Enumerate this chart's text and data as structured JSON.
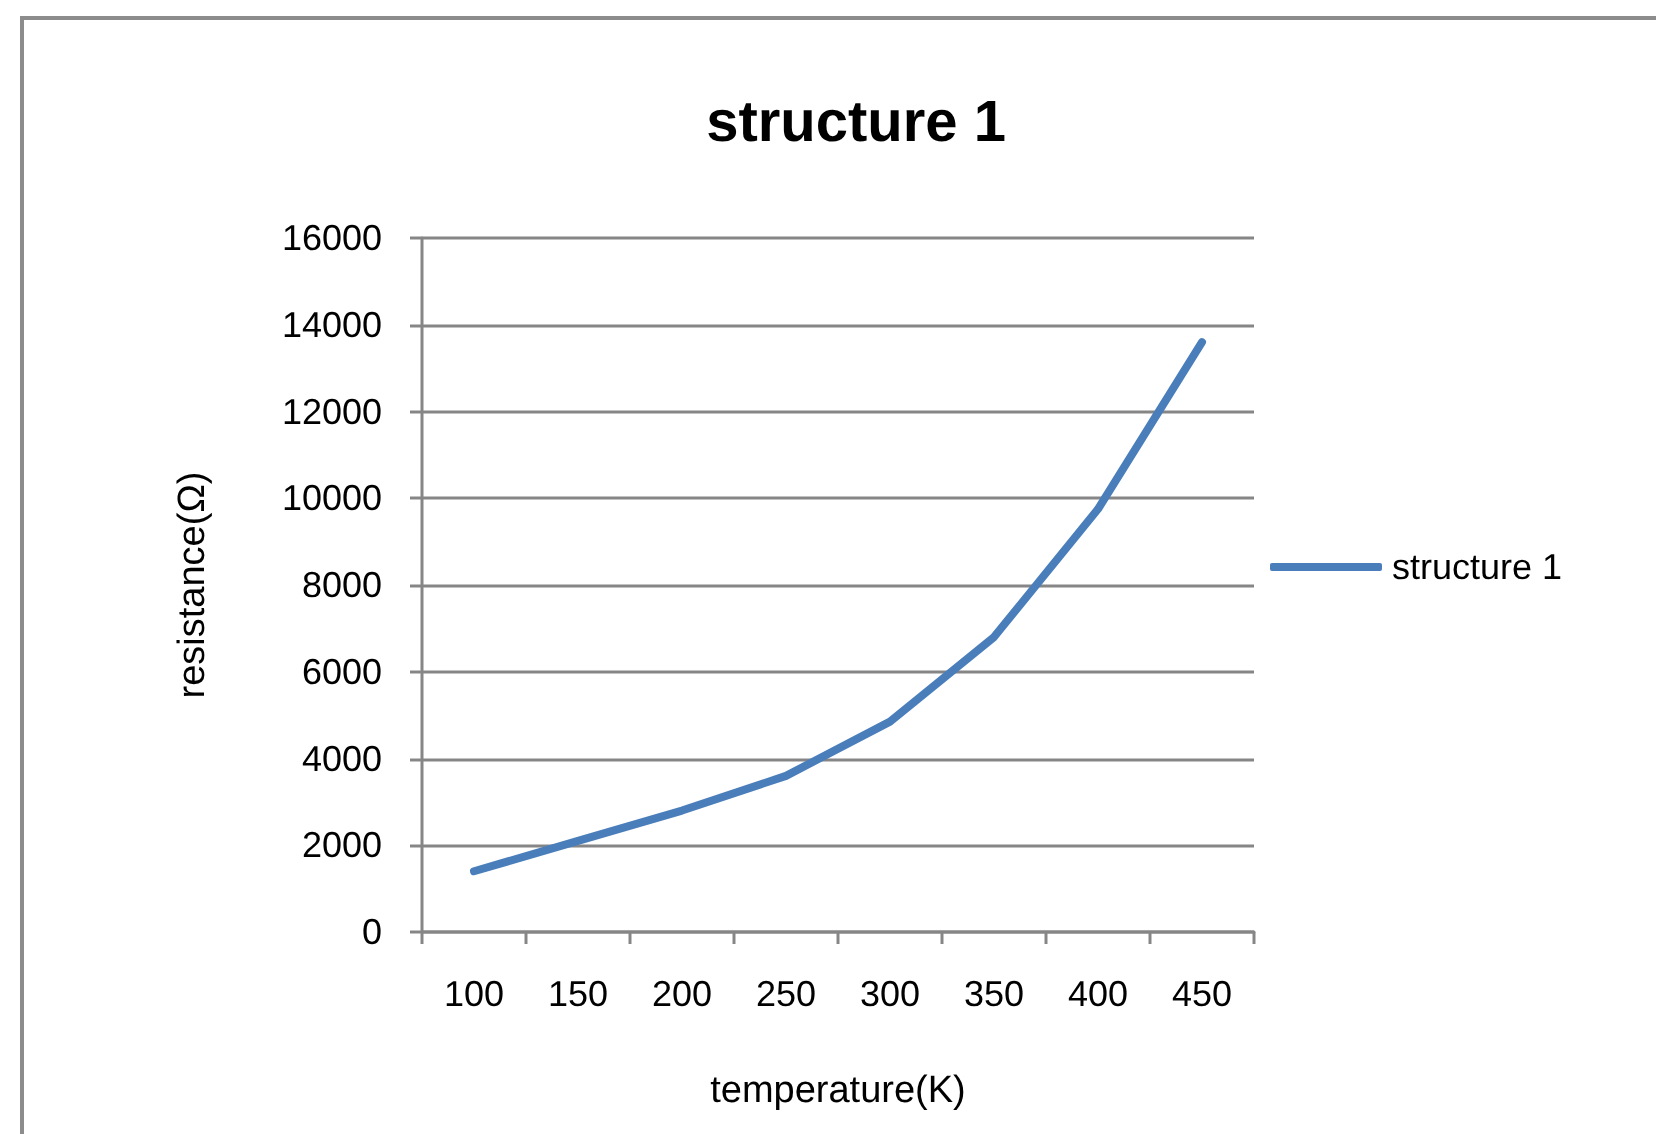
{
  "chart_data": {
    "type": "line",
    "title": "structure 1",
    "xlabel": "temperature(K)",
    "ylabel": "resistance(Ω)",
    "categories": [
      "100",
      "150",
      "200",
      "250",
      "300",
      "350",
      "400",
      "450"
    ],
    "series": [
      {
        "name": "structure 1",
        "color": "#4a7ebb",
        "values": [
          1400,
          2100,
          2800,
          3600,
          4850,
          6800,
          9750,
          13600
        ]
      }
    ],
    "ylim": [
      0,
      16000
    ],
    "yticks": [
      0,
      2000,
      4000,
      6000,
      8000,
      10000,
      12000,
      14000,
      16000
    ],
    "grid": "y",
    "legend": "right",
    "marker": "none",
    "line_style": "solid"
  }
}
